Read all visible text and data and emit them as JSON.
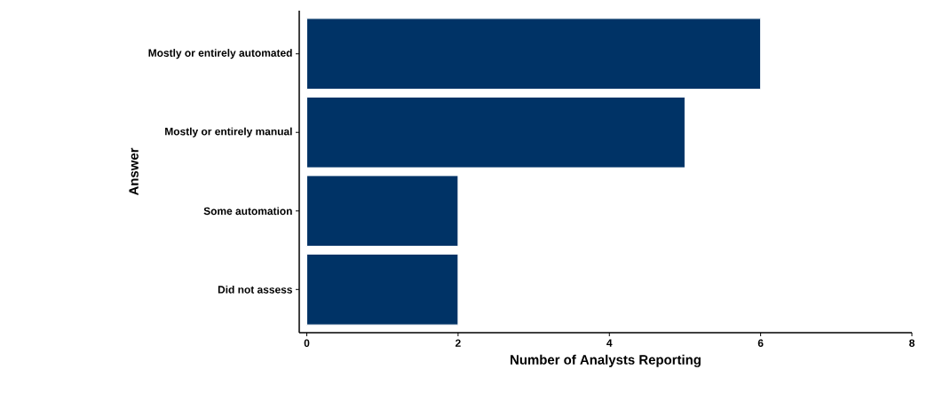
{
  "chart_data": {
    "type": "bar",
    "orientation": "horizontal",
    "xlabel": "Number of Analysts Reporting",
    "ylabel": "Answer",
    "categories": [
      "Mostly or entirely automated",
      "Mostly or entirely manual",
      "Some automation",
      "Did not assess"
    ],
    "values": [
      6,
      5,
      2,
      2
    ],
    "color": "#003366",
    "xlim": [
      -0.1,
      8
    ],
    "xticks": [
      0,
      2,
      4,
      6,
      8
    ]
  }
}
